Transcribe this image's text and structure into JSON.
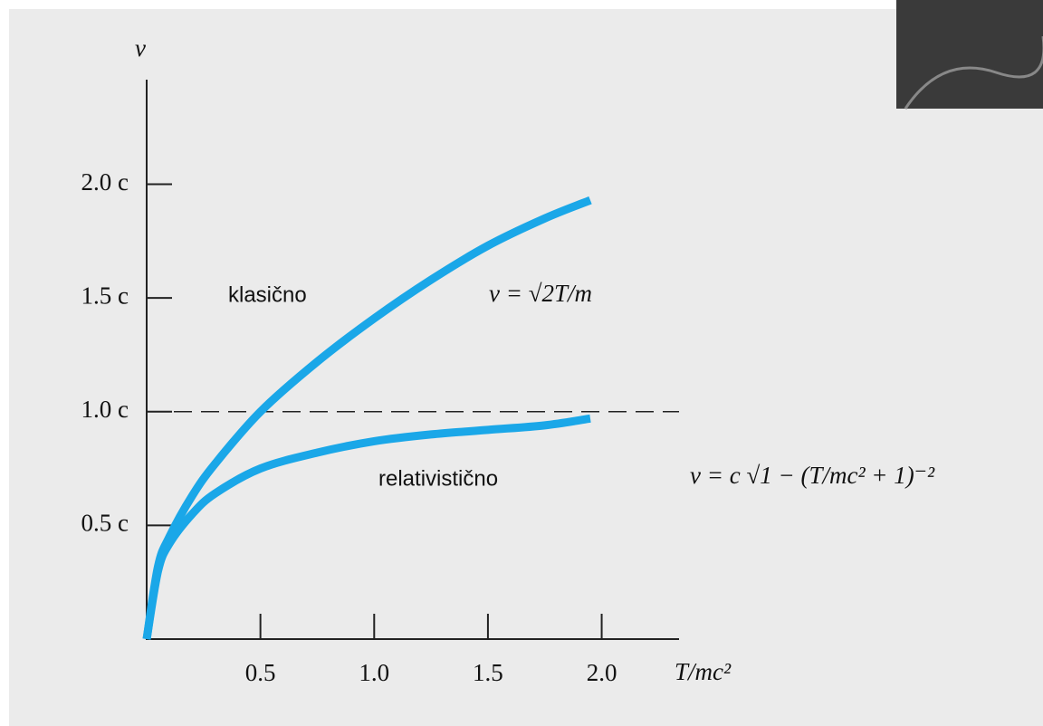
{
  "chart_data": {
    "type": "line",
    "x_label": "T/mc²",
    "y_label": "v",
    "x": [
      0,
      0.05,
      0.1,
      0.2,
      0.3,
      0.5,
      0.75,
      1.0,
      1.25,
      1.5,
      1.75,
      1.95
    ],
    "series": [
      {
        "name": "klasično",
        "color": "#1aa7e8",
        "values": [
          0,
          0.32,
          0.45,
          0.63,
          0.77,
          1.0,
          1.22,
          1.41,
          1.58,
          1.73,
          1.85,
          1.93
        ]
      },
      {
        "name": "relativistično",
        "color": "#1aa7e8",
        "values": [
          0,
          0.3,
          0.42,
          0.55,
          0.64,
          0.75,
          0.82,
          0.87,
          0.9,
          0.92,
          0.94,
          0.97
        ]
      }
    ],
    "annotations": [
      "v = √2T/m",
      "v = c √1 − (T/mc² + 1)⁻²"
    ],
    "reference_line": 1,
    "xlim": [
      0,
      2.34
    ],
    "ylim": [
      0,
      2.46
    ],
    "xticks": [
      0.5,
      {
        "value": 1,
        "label": "1.0"
      },
      1.5,
      {
        "value": 2,
        "label": "2.0"
      }
    ],
    "yticks": [
      {
        "value": 0.5,
        "label": "0.5 c"
      },
      {
        "value": 1,
        "label": "1.0 c"
      },
      {
        "value": 1.5,
        "label": "1.5 c"
      },
      {
        "value": 2,
        "label": "2.0 c"
      }
    ]
  }
}
